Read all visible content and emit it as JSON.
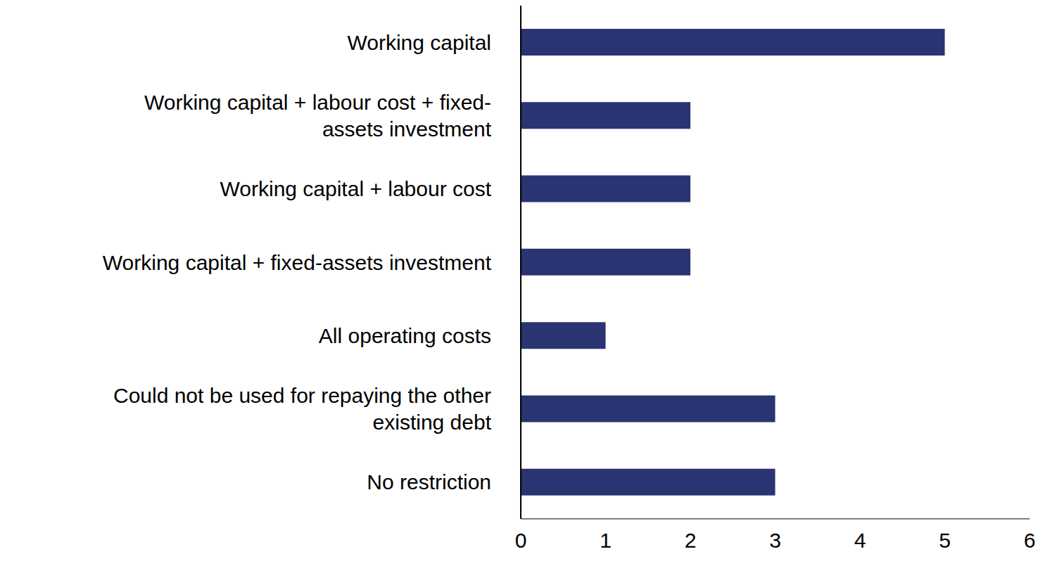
{
  "chart_data": {
    "type": "bar",
    "orientation": "horizontal",
    "categories": [
      "Working capital",
      "Working capital + labour cost + fixed-assets investment",
      "Working capital + labour cost",
      "Working capital + fixed-assets investment",
      "All operating costs",
      "Could not be used for repaying the other existing debt",
      "No restriction"
    ],
    "values": [
      5,
      2,
      2,
      2,
      1,
      3,
      3
    ],
    "color": "#2b3472",
    "xlim": [
      0,
      6
    ],
    "xticks": [
      0,
      1,
      2,
      3,
      4,
      5,
      6
    ],
    "grid": false
  }
}
